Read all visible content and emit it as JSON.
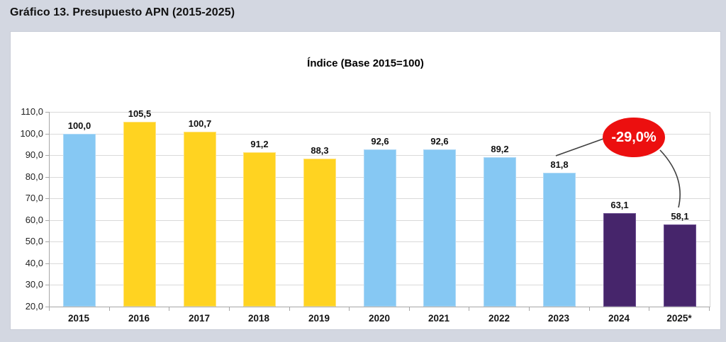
{
  "page": {
    "title": "Gráfico 13. Presupuesto APN (2015-2025)"
  },
  "chart_data": {
    "type": "bar",
    "title": "Índice (Base 2015=100)",
    "categories": [
      "2015",
      "2016",
      "2017",
      "2018",
      "2019",
      "2020",
      "2021",
      "2022",
      "2023",
      "2024",
      "2025*"
    ],
    "values": [
      100.0,
      105.5,
      100.7,
      91.2,
      88.3,
      92.6,
      92.6,
      89.2,
      81.8,
      63.1,
      58.1
    ],
    "value_labels": [
      "100,0",
      "105,5",
      "100,7",
      "91,2",
      "88,3",
      "92,6",
      "92,6",
      "89,2",
      "81,8",
      "63,1",
      "58,1"
    ],
    "bar_color_keys": [
      "blue",
      "yellow",
      "yellow",
      "yellow",
      "yellow",
      "blue",
      "blue",
      "blue",
      "blue",
      "purple",
      "purple"
    ],
    "palette": {
      "blue": "#86c8f3",
      "yellow": "#ffd321",
      "purple": "#46256b"
    },
    "border_palette": {
      "blue": "#aed9f6",
      "yellow": "#ffe27d",
      "purple": "#6d4f92"
    },
    "xlabel": "",
    "ylabel": "",
    "ylim": [
      20,
      110
    ],
    "ytick_step": 10,
    "ytick_labels": [
      "110,0",
      "100,0",
      "90,0",
      "80,0",
      "70,0",
      "60,0",
      "50,0",
      "40,0",
      "30,0",
      "20,0"
    ],
    "grid": true,
    "legend": "none",
    "annotation": {
      "text": "-29,0%",
      "fill_color": "#ec0f0f",
      "text_color": "#ffffff",
      "points_to": [
        "2023",
        "2025*"
      ]
    }
  }
}
